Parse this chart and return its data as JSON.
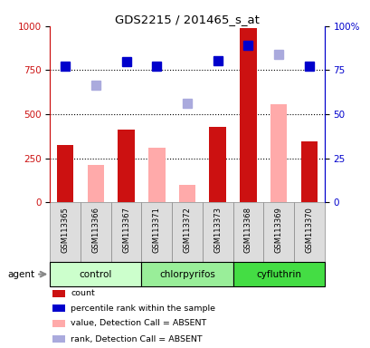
{
  "title": "GDS2215 / 201465_s_at",
  "samples": [
    "GSM113365",
    "GSM113366",
    "GSM113367",
    "GSM113371",
    "GSM113372",
    "GSM113373",
    "GSM113368",
    "GSM113369",
    "GSM113370"
  ],
  "groups": [
    {
      "name": "control",
      "indices": [
        0,
        1,
        2
      ]
    },
    {
      "name": "chlorpyrifos",
      "indices": [
        3,
        4,
        5
      ]
    },
    {
      "name": "cyfluthrin",
      "indices": [
        6,
        7,
        8
      ]
    }
  ],
  "group_colors": {
    "control": "#ccffcc",
    "chlorpyrifos": "#99ee99",
    "cyfluthrin": "#44dd44"
  },
  "count_values": [
    325,
    null,
    410,
    null,
    null,
    430,
    990,
    null,
    345
  ],
  "count_color": "#cc1111",
  "absent_value_values": [
    null,
    210,
    null,
    310,
    100,
    null,
    null,
    555,
    null
  ],
  "absent_value_color": "#ffaaaa",
  "percentile_rank_values": [
    775,
    null,
    800,
    770,
    null,
    805,
    890,
    null,
    775
  ],
  "percentile_rank_color": "#0000cc",
  "absent_rank_values": [
    null,
    665,
    null,
    null,
    560,
    null,
    null,
    840,
    null
  ],
  "absent_rank_color": "#aaaadd",
  "ylim_left": [
    0,
    1000
  ],
  "ylim_right": [
    0,
    100
  ],
  "yticks_left": [
    0,
    250,
    500,
    750,
    1000
  ],
  "yticks_right": [
    0,
    25,
    50,
    75,
    100
  ],
  "ytick_right_labels": [
    "0",
    "25",
    "50",
    "75",
    "100%"
  ],
  "grid_lines": [
    250,
    500,
    750
  ],
  "bar_width": 0.55,
  "marker_size": 7,
  "legend_items": [
    {
      "label": "count",
      "color": "#cc1111"
    },
    {
      "label": "percentile rank within the sample",
      "color": "#0000cc"
    },
    {
      "label": "value, Detection Call = ABSENT",
      "color": "#ffaaaa"
    },
    {
      "label": "rank, Detection Call = ABSENT",
      "color": "#aaaadd"
    }
  ],
  "cell_color": "#dddddd",
  "agent_label": "agent"
}
